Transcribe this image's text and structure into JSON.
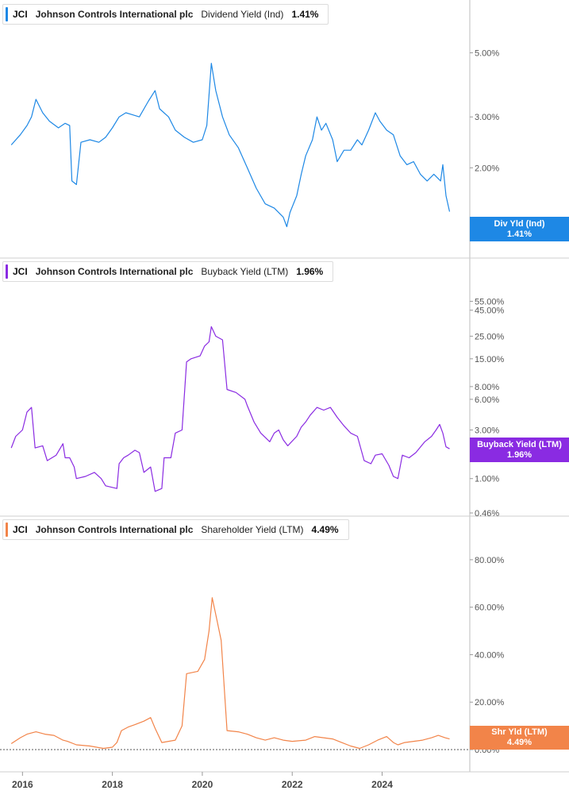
{
  "colors": {
    "dividend": "#1e88e5",
    "buyback": "#8a2be2",
    "shareholder": "#f28449",
    "axis": "#555555",
    "grid": "#cccccc"
  },
  "panels": [
    {
      "ticker": "JCI",
      "company": "Johnson Controls International plc",
      "metric": "Dividend Yield (Ind)",
      "value": "1.41%",
      "tag_line1": "Div Yld (Ind)",
      "tag_line2": "1.41%"
    },
    {
      "ticker": "JCI",
      "company": "Johnson Controls International plc",
      "metric": "Buyback Yield (LTM)",
      "value": "1.96%",
      "tag_line1": "Buyback Yield (LTM)",
      "tag_line2": "1.96%"
    },
    {
      "ticker": "JCI",
      "company": "Johnson Controls International plc",
      "metric": "Shareholder Yield (LTM)",
      "value": "4.49%",
      "tag_line1": "Shr Yld (LTM)",
      "tag_line2": "4.49%"
    }
  ],
  "chart_data": [
    {
      "type": "line",
      "series": [
        {
          "name": "Dividend Yield (Ind)",
          "color": "#1e88e5",
          "points": [
            [
              2015.75,
              2.4
            ],
            [
              2015.95,
              2.6
            ],
            [
              2016.1,
              2.8
            ],
            [
              2016.2,
              3.0
            ],
            [
              2016.3,
              3.45
            ],
            [
              2016.45,
              3.1
            ],
            [
              2016.6,
              2.9
            ],
            [
              2016.8,
              2.75
            ],
            [
              2016.95,
              2.85
            ],
            [
              2017.05,
              2.8
            ],
            [
              2017.1,
              1.8
            ],
            [
              2017.2,
              1.75
            ],
            [
              2017.3,
              2.45
            ],
            [
              2017.5,
              2.5
            ],
            [
              2017.7,
              2.45
            ],
            [
              2017.85,
              2.55
            ],
            [
              2018.0,
              2.75
            ],
            [
              2018.15,
              3.0
            ],
            [
              2018.3,
              3.1
            ],
            [
              2018.45,
              3.05
            ],
            [
              2018.6,
              3.0
            ],
            [
              2018.8,
              3.4
            ],
            [
              2018.95,
              3.7
            ],
            [
              2019.05,
              3.2
            ],
            [
              2019.25,
              3.0
            ],
            [
              2019.4,
              2.7
            ],
            [
              2019.6,
              2.55
            ],
            [
              2019.8,
              2.45
            ],
            [
              2020.0,
              2.5
            ],
            [
              2020.1,
              2.8
            ],
            [
              2020.2,
              4.6
            ],
            [
              2020.3,
              3.7
            ],
            [
              2020.45,
              3.0
            ],
            [
              2020.6,
              2.6
            ],
            [
              2020.8,
              2.35
            ],
            [
              2021.0,
              2.0
            ],
            [
              2021.2,
              1.7
            ],
            [
              2021.4,
              1.5
            ],
            [
              2021.6,
              1.45
            ],
            [
              2021.8,
              1.35
            ],
            [
              2021.88,
              1.25
            ],
            [
              2021.95,
              1.4
            ],
            [
              2022.1,
              1.6
            ],
            [
              2022.2,
              1.9
            ],
            [
              2022.3,
              2.2
            ],
            [
              2022.45,
              2.5
            ],
            [
              2022.55,
              3.0
            ],
            [
              2022.65,
              2.7
            ],
            [
              2022.75,
              2.85
            ],
            [
              2022.9,
              2.5
            ],
            [
              2023.0,
              2.1
            ],
            [
              2023.15,
              2.3
            ],
            [
              2023.3,
              2.3
            ],
            [
              2023.45,
              2.5
            ],
            [
              2023.55,
              2.4
            ],
            [
              2023.7,
              2.7
            ],
            [
              2023.85,
              3.1
            ],
            [
              2023.95,
              2.9
            ],
            [
              2024.1,
              2.7
            ],
            [
              2024.25,
              2.6
            ],
            [
              2024.4,
              2.2
            ],
            [
              2024.55,
              2.05
            ],
            [
              2024.7,
              2.1
            ],
            [
              2024.85,
              1.9
            ],
            [
              2025.0,
              1.8
            ],
            [
              2025.15,
              1.9
            ],
            [
              2025.3,
              1.8
            ],
            [
              2025.35,
              2.05
            ],
            [
              2025.42,
              1.6
            ],
            [
              2025.5,
              1.41
            ]
          ]
        }
      ],
      "x_range": [
        2015.5,
        2025.95
      ],
      "y_scale": "log",
      "ylim": [
        1.17,
        6.3
      ],
      "y_ticks": [
        5,
        3,
        2
      ],
      "y_tick_labels": [
        "5.00%",
        "3.00%",
        "2.00%"
      ]
    },
    {
      "type": "line",
      "series": [
        {
          "name": "Buyback Yield (LTM)",
          "color": "#8a2be2",
          "points": [
            [
              2015.75,
              2.0
            ],
            [
              2015.85,
              2.6
            ],
            [
              2016.0,
              3.0
            ],
            [
              2016.1,
              4.5
            ],
            [
              2016.2,
              5.0
            ],
            [
              2016.28,
              2.0
            ],
            [
              2016.45,
              2.1
            ],
            [
              2016.55,
              1.5
            ],
            [
              2016.75,
              1.7
            ],
            [
              2016.9,
              2.2
            ],
            [
              2016.95,
              1.6
            ],
            [
              2017.05,
              1.6
            ],
            [
              2017.15,
              1.3
            ],
            [
              2017.2,
              1.0
            ],
            [
              2017.4,
              1.05
            ],
            [
              2017.6,
              1.15
            ],
            [
              2017.75,
              1.0
            ],
            [
              2017.85,
              0.85
            ],
            [
              2018.1,
              0.8
            ],
            [
              2018.15,
              1.4
            ],
            [
              2018.25,
              1.6
            ],
            [
              2018.35,
              1.7
            ],
            [
              2018.5,
              1.9
            ],
            [
              2018.6,
              1.8
            ],
            [
              2018.7,
              1.15
            ],
            [
              2018.85,
              1.3
            ],
            [
              2018.95,
              0.75
            ],
            [
              2019.1,
              0.8
            ],
            [
              2019.15,
              1.6
            ],
            [
              2019.3,
              1.6
            ],
            [
              2019.4,
              2.8
            ],
            [
              2019.55,
              3.0
            ],
            [
              2019.65,
              14.0
            ],
            [
              2019.75,
              15.0
            ],
            [
              2019.95,
              16.0
            ],
            [
              2020.05,
              20.0
            ],
            [
              2020.15,
              22.0
            ],
            [
              2020.2,
              31.0
            ],
            [
              2020.3,
              25.0
            ],
            [
              2020.45,
              23.0
            ],
            [
              2020.55,
              7.5
            ],
            [
              2020.75,
              7.0
            ],
            [
              2020.95,
              6.0
            ],
            [
              2021.0,
              5.2
            ],
            [
              2021.15,
              3.6
            ],
            [
              2021.3,
              2.8
            ],
            [
              2021.5,
              2.3
            ],
            [
              2021.6,
              2.8
            ],
            [
              2021.7,
              3.0
            ],
            [
              2021.8,
              2.4
            ],
            [
              2021.9,
              2.1
            ],
            [
              2022.1,
              2.6
            ],
            [
              2022.2,
              3.2
            ],
            [
              2022.3,
              3.6
            ],
            [
              2022.4,
              4.2
            ],
            [
              2022.55,
              5.0
            ],
            [
              2022.7,
              4.7
            ],
            [
              2022.85,
              5.0
            ],
            [
              2023.0,
              4.0
            ],
            [
              2023.15,
              3.3
            ],
            [
              2023.3,
              2.8
            ],
            [
              2023.45,
              2.6
            ],
            [
              2023.6,
              1.5
            ],
            [
              2023.75,
              1.4
            ],
            [
              2023.85,
              1.7
            ],
            [
              2024.0,
              1.75
            ],
            [
              2024.15,
              1.35
            ],
            [
              2024.25,
              1.05
            ],
            [
              2024.35,
              1.0
            ],
            [
              2024.45,
              1.7
            ],
            [
              2024.6,
              1.6
            ],
            [
              2024.75,
              1.8
            ],
            [
              2024.95,
              2.3
            ],
            [
              2025.1,
              2.6
            ],
            [
              2025.2,
              3.0
            ],
            [
              2025.28,
              3.4
            ],
            [
              2025.35,
              2.8
            ],
            [
              2025.42,
              2.05
            ],
            [
              2025.5,
              1.96
            ]
          ]
        }
      ],
      "x_range": [
        2015.5,
        2025.95
      ],
      "y_scale": "log",
      "ylim": [
        0.46,
        70
      ],
      "y_ticks": [
        55,
        45,
        25,
        15,
        8,
        6,
        3,
        1,
        0.46
      ],
      "y_tick_labels": [
        "55.00%",
        "45.00%",
        "25.00%",
        "15.00%",
        "8.00%",
        "6.00%",
        "3.00%",
        "1.00%",
        "0.46%"
      ]
    },
    {
      "type": "line",
      "series": [
        {
          "name": "Shareholder Yield (LTM)",
          "color": "#f28449",
          "points": [
            [
              2015.75,
              2.5
            ],
            [
              2015.95,
              5.0
            ],
            [
              2016.1,
              6.5
            ],
            [
              2016.3,
              7.5
            ],
            [
              2016.5,
              6.5
            ],
            [
              2016.7,
              6.0
            ],
            [
              2016.9,
              4.0
            ],
            [
              2017.0,
              3.5
            ],
            [
              2017.2,
              2.0
            ],
            [
              2017.5,
              1.5
            ],
            [
              2017.8,
              0.5
            ],
            [
              2018.0,
              1.0
            ],
            [
              2018.1,
              3.0
            ],
            [
              2018.2,
              8.0
            ],
            [
              2018.35,
              9.5
            ],
            [
              2018.5,
              10.5
            ],
            [
              2018.7,
              12.0
            ],
            [
              2018.85,
              13.5
            ],
            [
              2018.95,
              9.0
            ],
            [
              2019.1,
              3.0
            ],
            [
              2019.4,
              4.0
            ],
            [
              2019.55,
              10.0
            ],
            [
              2019.65,
              32.0
            ],
            [
              2019.9,
              33.0
            ],
            [
              2020.05,
              38.0
            ],
            [
              2020.15,
              50.0
            ],
            [
              2020.22,
              64.0
            ],
            [
              2020.32,
              55.0
            ],
            [
              2020.42,
              46.0
            ],
            [
              2020.55,
              8.0
            ],
            [
              2020.8,
              7.5
            ],
            [
              2021.0,
              6.5
            ],
            [
              2021.2,
              5.0
            ],
            [
              2021.4,
              4.0
            ],
            [
              2021.6,
              5.0
            ],
            [
              2021.8,
              4.0
            ],
            [
              2022.0,
              3.5
            ],
            [
              2022.3,
              4.0
            ],
            [
              2022.5,
              5.5
            ],
            [
              2022.7,
              5.0
            ],
            [
              2022.9,
              4.5
            ],
            [
              2023.1,
              3.0
            ],
            [
              2023.3,
              1.5
            ],
            [
              2023.5,
              0.5
            ],
            [
              2023.7,
              2.0
            ],
            [
              2023.9,
              4.0
            ],
            [
              2024.1,
              5.5
            ],
            [
              2024.25,
              3.0
            ],
            [
              2024.35,
              2.0
            ],
            [
              2024.5,
              3.0
            ],
            [
              2024.7,
              3.5
            ],
            [
              2024.9,
              4.0
            ],
            [
              2025.1,
              5.0
            ],
            [
              2025.25,
              6.0
            ],
            [
              2025.4,
              5.0
            ],
            [
              2025.5,
              4.49
            ]
          ]
        }
      ],
      "x_range": [
        2015.5,
        2025.95
      ],
      "y_scale": "linear",
      "ylim": [
        -2,
        90
      ],
      "y_ticks": [
        80,
        60,
        40,
        20,
        0
      ],
      "y_tick_labels": [
        "80.00%",
        "60.00%",
        "40.00%",
        "20.00%",
        "0.00%"
      ]
    }
  ],
  "x_axis": {
    "ticks": [
      2016,
      2018,
      2020,
      2022,
      2024
    ],
    "labels": [
      "2016",
      "2018",
      "2020",
      "2022",
      "2024"
    ]
  }
}
